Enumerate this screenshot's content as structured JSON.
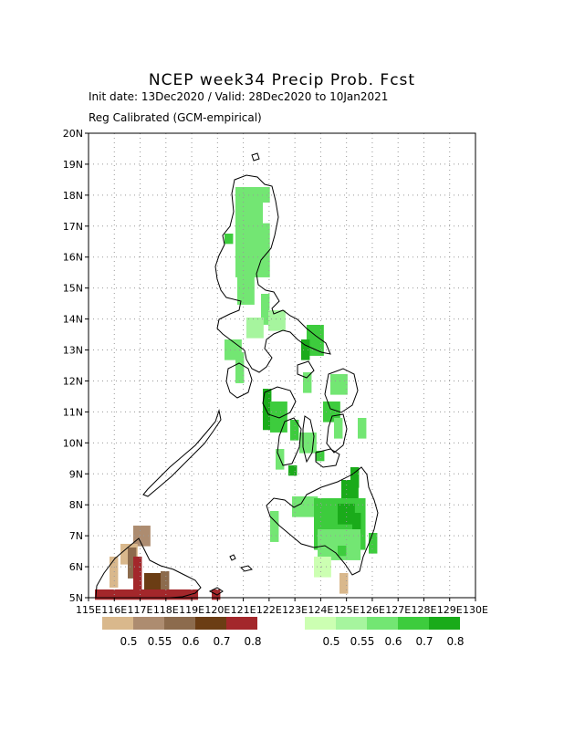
{
  "map": {
    "title": "NCEP week34 Precip Prob. Fcst",
    "subtitle_dates": "Init date: 13Dec2020 / Valid: 28Dec2020 to 10Jan2021",
    "subtitle_method": "Reg Calibrated (GCM-empirical)",
    "lat_labels": [
      "20N",
      "19N",
      "18N",
      "17N",
      "16N",
      "15N",
      "14N",
      "13N",
      "12N",
      "11N",
      "10N",
      "9N",
      "8N",
      "7N",
      "6N",
      "5N"
    ],
    "lon_labels": [
      "115E",
      "116E",
      "117E",
      "118E",
      "119E",
      "120E",
      "121E",
      "122E",
      "123E",
      "124E",
      "125E",
      "126E",
      "127E",
      "128E",
      "129E",
      "130E"
    ],
    "lat_range": [
      5,
      20
    ],
    "lon_range": [
      115,
      130
    ],
    "grid_lines": "dotted",
    "dry_legend": {
      "labels": [
        "0.5",
        "0.55",
        "0.6",
        "0.7",
        "0.8"
      ],
      "colors": [
        "#d9b88c",
        "#ad8c70",
        "#8c6b4d",
        "#6b3d14",
        "#a3272b"
      ]
    },
    "wet_legend": {
      "labels": [
        "0.5",
        "0.55",
        "0.6",
        "0.7",
        "0.8"
      ],
      "colors": [
        "#ccffb2",
        "#a6f59e",
        "#73e673",
        "#3dcc3d",
        "#1aab1a"
      ]
    }
  }
}
